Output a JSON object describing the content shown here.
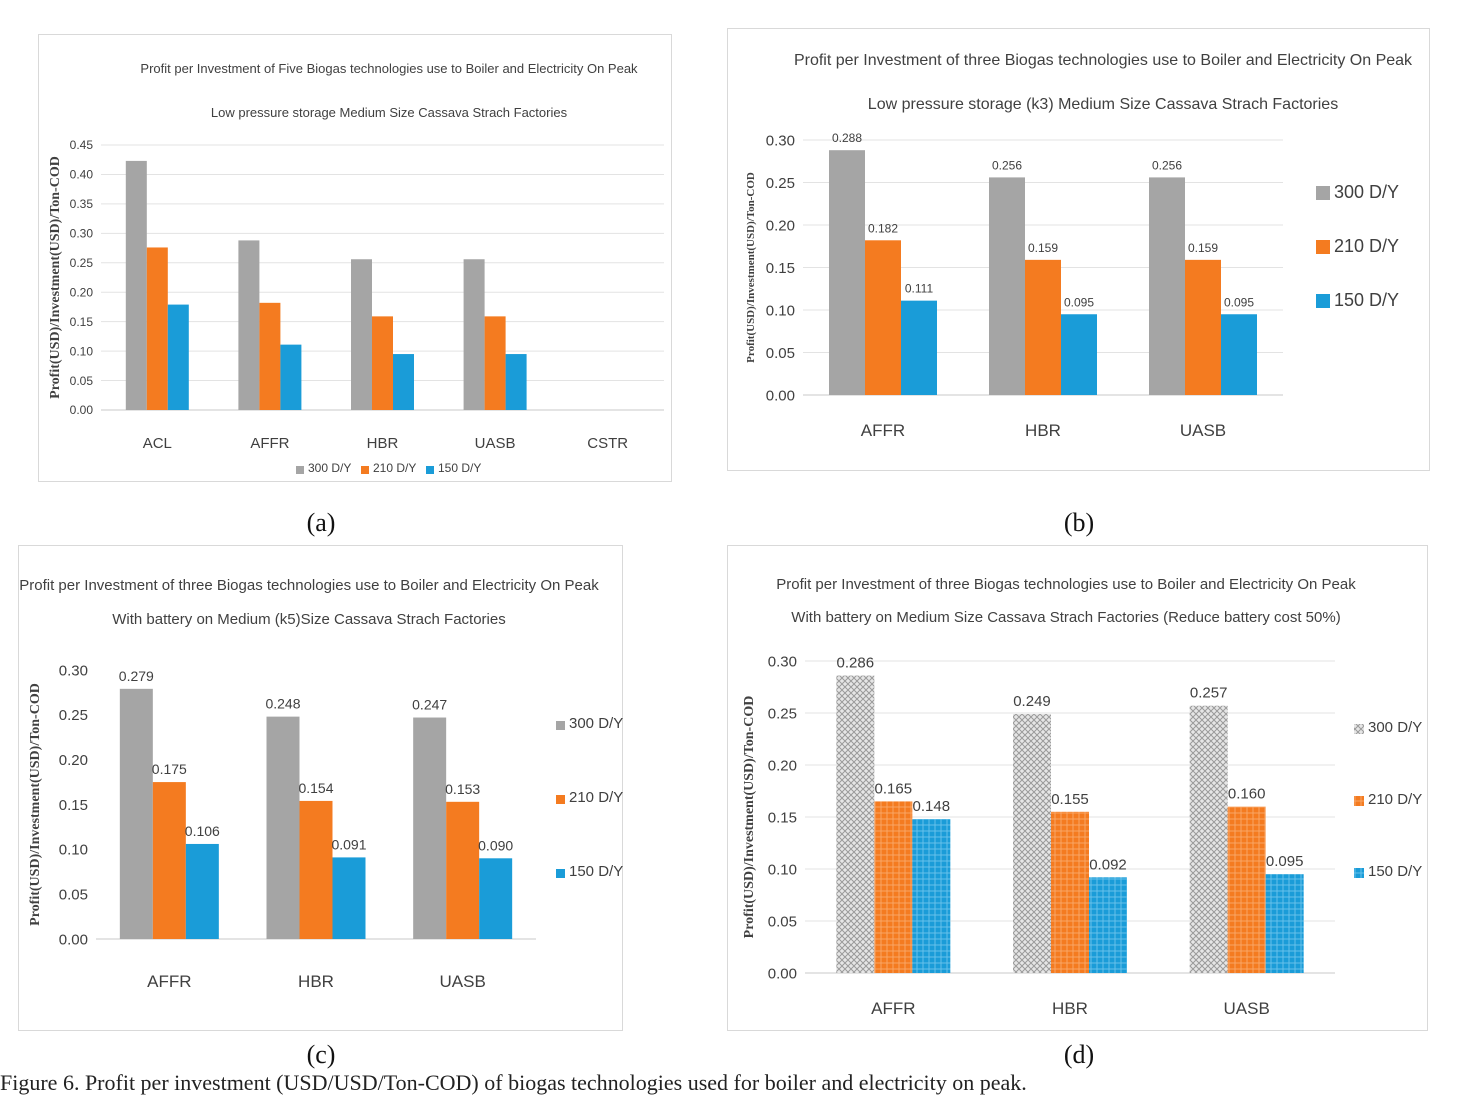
{
  "colors": {
    "s300": "#a5a5a5",
    "s210": "#f47b20",
    "s150": "#1a9cd8",
    "grid": "#e3e3e3",
    "text": "#404040"
  },
  "captions": [
    "(a)",
    "(b)",
    "(c)",
    "(d)"
  ],
  "footer_text": "Figure 6. Profit per investment (USD/USD/Ton-COD) of biogas technologies used for boiler and electricity on peak.",
  "chart_data": [
    {
      "type": "bar",
      "title": "Profit per Investment of Five Biogas technologies use to Boiler and Electricity On Peak",
      "subtitle": "Low pressure storage    Medium Size Cassava Strach Factories",
      "ylabel": "Profit(USD)/Investment(USD)/Ton-COD",
      "xlabel": "",
      "categories": [
        "ACL",
        "AFFR",
        "HBR",
        "UASB",
        "CSTR"
      ],
      "ylim": [
        0,
        0.45
      ],
      "yticks": [
        "0.00",
        "0.05",
        "0.10",
        "0.15",
        "0.20",
        "0.25",
        "0.30",
        "0.35",
        "0.40",
        "0.45"
      ],
      "legend_position": "bottom",
      "series": [
        {
          "name": "300 D/Y",
          "values": [
            0.423,
            0.288,
            0.256,
            0.256,
            0
          ]
        },
        {
          "name": "210 D/Y",
          "values": [
            0.276,
            0.182,
            0.159,
            0.159,
            0
          ]
        },
        {
          "name": "150 D/Y",
          "values": [
            0.179,
            0.111,
            0.095,
            0.095,
            0
          ]
        }
      ],
      "data_labels": false
    },
    {
      "type": "bar",
      "title": "Profit per Investment of three Biogas technologies use to Boiler and Electricity On Peak",
      "subtitle": "Low pressure storage  (k3)  Medium Size Cassava Strach Factories",
      "ylabel": "Profit(USD)/Investment(USD)/Ton-COD",
      "xlabel": "",
      "categories": [
        "AFFR",
        "HBR",
        "UASB"
      ],
      "ylim": [
        0,
        0.3
      ],
      "yticks": [
        "0.00",
        "0.05",
        "0.10",
        "0.15",
        "0.20",
        "0.25",
        "0.30"
      ],
      "legend_position": "right",
      "series": [
        {
          "name": "300 D/Y",
          "values": [
            0.288,
            0.256,
            0.256
          ],
          "labels": [
            "0.288",
            "0.256",
            "0.256"
          ]
        },
        {
          "name": "210 D/Y",
          "values": [
            0.182,
            0.159,
            0.159
          ],
          "labels": [
            "0.182",
            "0.159",
            "0.159"
          ]
        },
        {
          "name": "150 D/Y",
          "values": [
            0.111,
            0.095,
            0.095
          ],
          "labels": [
            "0.111",
            "0.095",
            "0.095"
          ]
        }
      ],
      "data_labels": true
    },
    {
      "type": "bar",
      "title": "Profit per Investment of three Biogas technologies use to Boiler and Electricity On Peak",
      "subtitle": "With battery on Medium (k5)Size Cassava Strach Factories",
      "ylabel": "Profit(USD)/Investment(USD)/Ton-COD",
      "xlabel": "",
      "categories": [
        "AFFR",
        "HBR",
        "UASB"
      ],
      "ylim": [
        0,
        0.3
      ],
      "yticks": [
        "0.00",
        "0.05",
        "0.10",
        "0.15",
        "0.20",
        "0.25",
        "0.30"
      ],
      "legend_position": "right",
      "series": [
        {
          "name": "300 D/Y",
          "values": [
            0.279,
            0.248,
            0.247
          ],
          "labels": [
            "0.279",
            "0.248",
            "0.247"
          ]
        },
        {
          "name": "210 D/Y",
          "values": [
            0.175,
            0.154,
            0.153
          ],
          "labels": [
            "0.175",
            "0.154",
            "0.153"
          ]
        },
        {
          "name": "150 D/Y",
          "values": [
            0.106,
            0.091,
            0.09
          ],
          "labels": [
            "0.106",
            "0.091",
            "0.090"
          ]
        }
      ],
      "data_labels": true
    },
    {
      "type": "bar",
      "title": "Profit per Investment of three Biogas technologies use to Boiler and Electricity On Peak",
      "subtitle": "With battery on Medium Size Cassava Strach Factories (Reduce battery cost 50%)",
      "ylabel": "Profit(USD)/Investment(USD)/Ton-COD",
      "xlabel": "",
      "categories": [
        "AFFR",
        "HBR",
        "UASB"
      ],
      "ylim": [
        0,
        0.3
      ],
      "yticks": [
        "0.00",
        "0.05",
        "0.10",
        "0.15",
        "0.20",
        "0.25",
        "0.30"
      ],
      "legend_position": "right",
      "series": [
        {
          "name": "300 D/Y",
          "values": [
            0.286,
            0.249,
            0.257
          ],
          "labels": [
            "0.286",
            "0.249",
            "0.257"
          ]
        },
        {
          "name": "210 D/Y",
          "values": [
            0.165,
            0.155,
            0.16
          ],
          "labels": [
            "0.165",
            "0.155",
            "0.160"
          ]
        },
        {
          "name": "150 D/Y",
          "values": [
            0.148,
            0.092,
            0.095
          ],
          "labels": [
            "0.148",
            "0.092",
            "0.095"
          ]
        }
      ],
      "data_labels": true,
      "patterned": true
    }
  ]
}
